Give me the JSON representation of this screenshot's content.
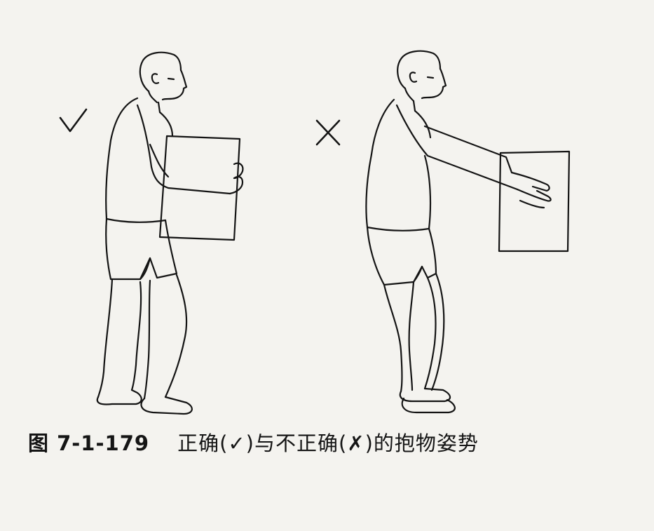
{
  "figure": {
    "correct_mark": "✓",
    "wrong_mark": "✗",
    "ink_color": "#141414",
    "paper_color": "#f4f3ef"
  },
  "caption": {
    "number": "图 7-1-179",
    "title": "正确(✓)与不正确(✗)的抱物姿势"
  }
}
